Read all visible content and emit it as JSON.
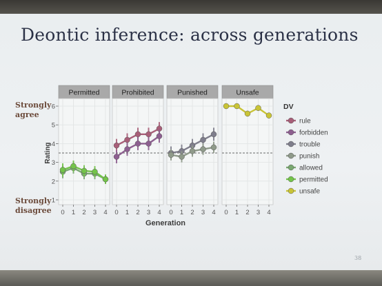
{
  "slide": {
    "title": "Deontic inference: across generations",
    "anchor_top": "Strongly agree",
    "anchor_bottom": "Strongly disagree",
    "page_number": "38"
  },
  "chart_data": {
    "type": "line",
    "title": "",
    "xlabel": "Generation",
    "ylabel": "Rating",
    "x": [
      0,
      1,
      2,
      3,
      4
    ],
    "xticks": [
      "0",
      "1",
      "2",
      "3",
      "4"
    ],
    "yticks": [
      "1",
      "2",
      "3",
      "4",
      "5",
      "6"
    ],
    "ylim": [
      1,
      6
    ],
    "reference_line": 3.5,
    "legend_title": "DV",
    "legend_position": "right",
    "panels": [
      {
        "name": "Permitted",
        "series": [
          {
            "name": "allowed",
            "color": "#79a870",
            "values": [
              2.5,
              2.7,
              2.4,
              2.4,
              2.1
            ],
            "err": [
              0.35,
              0.3,
              0.3,
              0.3,
              0.25
            ]
          },
          {
            "name": "permitted",
            "color": "#74c44a",
            "values": [
              2.6,
              2.8,
              2.55,
              2.5,
              2.1
            ],
            "err": [
              0.35,
              0.3,
              0.3,
              0.3,
              0.25
            ]
          }
        ]
      },
      {
        "name": "Prohibited",
        "series": [
          {
            "name": "rule",
            "color": "#a85e78",
            "values": [
              3.9,
              4.2,
              4.5,
              4.5,
              4.8
            ],
            "err": [
              0.35,
              0.35,
              0.35,
              0.35,
              0.35
            ]
          },
          {
            "name": "forbidden",
            "color": "#8d5f90",
            "values": [
              3.3,
              3.7,
              4.0,
              4.0,
              4.4
            ],
            "err": [
              0.35,
              0.35,
              0.35,
              0.35,
              0.35
            ]
          }
        ]
      },
      {
        "name": "Punished",
        "series": [
          {
            "name": "trouble",
            "color": "#7f7e8c",
            "values": [
              3.5,
              3.6,
              3.9,
              4.2,
              4.5
            ],
            "err": [
              0.35,
              0.35,
              0.35,
              0.35,
              0.35
            ]
          },
          {
            "name": "punish",
            "color": "#8f9a8a",
            "values": [
              3.4,
              3.3,
              3.6,
              3.7,
              3.8
            ],
            "err": [
              0.3,
              0.3,
              0.3,
              0.3,
              0.3
            ]
          }
        ]
      },
      {
        "name": "Unsafe",
        "series": [
          {
            "name": "unsafe",
            "color": "#c9c436",
            "values": [
              6.0,
              6.0,
              5.6,
              5.9,
              5.5
            ],
            "err": [
              0.12,
              0.12,
              0.15,
              0.12,
              0.15
            ]
          }
        ]
      }
    ],
    "legend": [
      {
        "name": "rule",
        "color": "#a85e78"
      },
      {
        "name": "forbidden",
        "color": "#8d5f90"
      },
      {
        "name": "trouble",
        "color": "#7f7e8c"
      },
      {
        "name": "punish",
        "color": "#8f9a8a"
      },
      {
        "name": "allowed",
        "color": "#79a870"
      },
      {
        "name": "permitted",
        "color": "#74c44a"
      },
      {
        "name": "unsafe",
        "color": "#c9c436"
      }
    ]
  }
}
